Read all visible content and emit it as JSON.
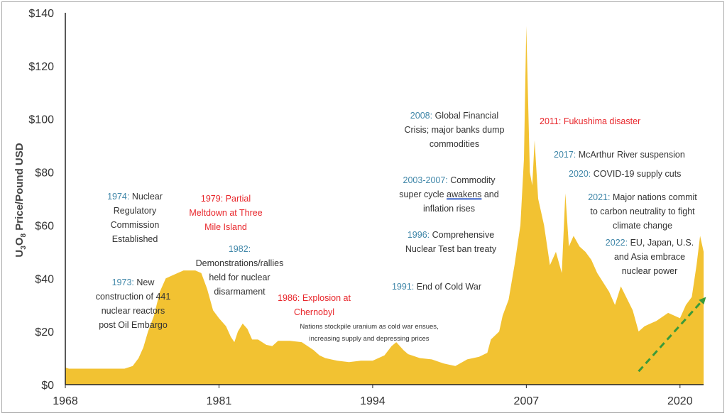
{
  "chart_data": {
    "type": "area",
    "title": "",
    "xlabel": "",
    "ylabel": "U3O8 Price/Pound USD",
    "xlim": [
      1968,
      2022
    ],
    "ylim": [
      0,
      140
    ],
    "x_ticks": [
      "1968",
      "1981",
      "1994",
      "2007",
      "2020"
    ],
    "y_ticks": [
      "$0",
      "$20",
      "$40",
      "$60",
      "$80",
      "$100",
      "$120",
      "$140"
    ],
    "fill_color": "#f2c232",
    "grid": false,
    "series": [
      {
        "name": "U3O8 price",
        "x": [
          1968,
          1968.3,
          1973,
          1973.7,
          1974.2,
          1974.6,
          1975,
          1975.5,
          1976,
          1976.5,
          1977,
          1977.5,
          1978,
          1979,
          1979.5,
          1980,
          1980.5,
          1981,
          1981.6,
          1982,
          1982.3,
          1982.6,
          1983,
          1983.4,
          1983.8,
          1984.3,
          1985,
          1985.5,
          1986,
          1987,
          1988,
          1989,
          1989.5,
          1990,
          1991,
          1992,
          1993,
          1994,
          1995,
          1995.6,
          1996,
          1996.6,
          1997,
          1998,
          1999,
          2000,
          2001,
          2002,
          2003,
          2003.7,
          2004,
          2004.7,
          2005,
          2005.5,
          2006,
          2006.5,
          2006.8,
          2007,
          2007.3,
          2007.5,
          2007.7,
          2008,
          2008.5,
          2009,
          2009.5,
          2010,
          2010.3,
          2010.6,
          2011,
          2011.5,
          2012,
          2012.5,
          2013,
          2014,
          2014.5,
          2015,
          2016,
          2016.5,
          2017,
          2017.5,
          2018,
          2019,
          2020,
          2020.5,
          2021,
          2021.4,
          2021.7,
          2022
        ],
        "y": [
          6.5,
          6,
          6,
          7,
          10,
          14,
          20,
          26,
          35,
          40,
          41,
          42,
          43,
          43,
          42,
          36,
          28,
          25,
          22,
          18,
          16,
          20,
          23,
          21,
          17,
          17,
          15,
          14.5,
          16.5,
          16.5,
          16,
          13,
          11,
          10,
          9,
          8.5,
          9,
          9,
          11,
          14.5,
          16,
          13,
          11.5,
          10,
          9.5,
          8,
          7,
          9.5,
          10.5,
          12,
          17,
          20,
          26,
          32,
          45,
          60,
          85,
          135,
          80,
          75,
          92,
          70,
          60,
          45,
          50,
          42,
          72,
          52,
          56,
          52,
          50,
          47,
          42,
          35,
          30,
          37,
          28,
          20,
          22,
          23,
          24,
          27,
          25,
          30,
          33,
          45,
          56,
          50
        ]
      }
    ],
    "trend_arrow": {
      "from": [
        2016.5,
        5
      ],
      "to": [
        2022.2,
        33
      ],
      "color": "#3a9a3a",
      "style": "dashed"
    }
  },
  "annotations": [
    {
      "year": "1974:",
      "text": [
        "Nuclear",
        "Regulatory",
        "Commission",
        "Established"
      ]
    },
    {
      "year": "1973:",
      "text": [
        "New",
        "construction of 441",
        "nuclear reactors",
        "post Oil Embargo"
      ]
    },
    {
      "red": "1979: Partial",
      "text": [
        "Meltdown at Three",
        "Mile Island"
      ]
    },
    {
      "year": "1982:",
      "text": [
        "Demonstrations/rallies",
        "held for nuclear",
        "disarmament"
      ]
    },
    {
      "red": "1986: Explosion at",
      "text": [
        "Chernobyl"
      ]
    },
    {
      "text": [
        "Nations stockpile uranium as cold war ensues,",
        "increasing supply and depressing prices"
      ]
    },
    {
      "year": "1991:",
      "text": [
        "End of Cold War"
      ]
    },
    {
      "year": "1996:",
      "text": [
        "Comprehensive",
        "Nuclear Test ban treaty"
      ]
    },
    {
      "year": "2003-2007:",
      "text": [
        "Commodity",
        "super cycle",
        "awakens",
        "and",
        "inflation rises"
      ]
    },
    {
      "year": "2008:",
      "text": [
        "Global Financial",
        "Crisis; major banks dump",
        "commodities"
      ]
    },
    {
      "red": "2011: Fukushima disaster"
    },
    {
      "year": "2017:",
      "text": [
        "McArthur River suspension"
      ]
    },
    {
      "year": "2020:",
      "text": [
        "COVID-19 supply cuts"
      ]
    },
    {
      "year": "2021:",
      "text": [
        "Major nations commit",
        "to carbon neutrality to fight",
        "climate change"
      ]
    },
    {
      "year": "2022:",
      "text": [
        "EU, Japan, U.S.",
        "and Asia embrace",
        "nuclear power"
      ]
    }
  ]
}
